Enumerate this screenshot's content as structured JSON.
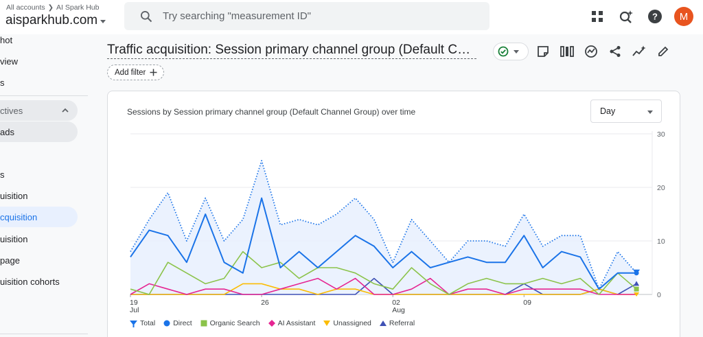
{
  "topbar": {
    "breadcrumb": [
      "All accounts",
      "AI Spark Hub"
    ],
    "account_name": "aisparkhub.com",
    "search_placeholder": "Try searching \"measurement ID\"",
    "avatar_letter": "M"
  },
  "sidebar": {
    "items": [
      {
        "label": "hot",
        "top": 0
      },
      {
        "label": "view",
        "top": 0
      },
      {
        "label": "s",
        "top": 0
      },
      {
        "label": "ctives",
        "top": 0
      },
      {
        "label": "ads",
        "top": 0
      },
      {
        "label": "s",
        "top": 0
      },
      {
        "label": "uisition",
        "top": 0
      },
      {
        "label": "cquisition",
        "top": 0
      },
      {
        "label": "uisition",
        "top": 0
      },
      {
        "label": "page",
        "top": 0
      },
      {
        "label": "uisition cohorts",
        "top": 0
      }
    ]
  },
  "header": {
    "title": "Traffic acquisition: Session primary channel group (Default Channel Group)",
    "add_filter": "Add filter"
  },
  "card": {
    "title": "Sessions by Session primary channel group (Default Channel Group) over time",
    "granularity": "Day"
  },
  "colors": {
    "total": "#1a73e8",
    "total_fill": "#e8f0fe",
    "direct": "#1a73e8",
    "organic": "#8bc34a",
    "ai": "#e52592",
    "unassigned": "#fbbc04",
    "referral": "#3f51b5"
  },
  "chart_data": {
    "type": "line",
    "x_ticks": [
      {
        "day": 0,
        "label": "19",
        "sub": "Jul"
      },
      {
        "day": 7,
        "label": "26",
        "sub": ""
      },
      {
        "day": 14,
        "label": "02",
        "sub": "Aug"
      },
      {
        "day": 21,
        "label": "09",
        "sub": ""
      }
    ],
    "y_ticks": [
      0,
      10,
      20,
      30
    ],
    "ylim": [
      0,
      30
    ],
    "series": [
      {
        "name": "Total",
        "key": "total",
        "values": [
          8,
          14,
          19,
          10,
          18,
          10,
          14,
          25,
          13,
          14,
          13,
          15,
          18,
          14,
          6,
          14,
          10,
          6,
          10,
          10,
          9,
          15,
          9,
          11,
          11,
          1,
          8,
          4
        ]
      },
      {
        "name": "Direct",
        "key": "direct",
        "values": [
          7,
          12,
          11,
          6,
          15,
          6,
          4,
          18,
          5,
          8,
          5,
          8,
          11,
          9,
          5,
          8,
          5,
          6,
          7,
          6,
          6,
          11,
          5,
          8,
          7,
          1,
          4,
          4
        ]
      },
      {
        "name": "Organic Search",
        "key": "organic",
        "values": [
          1,
          0,
          6,
          4,
          2,
          3,
          8,
          5,
          6,
          3,
          5,
          5,
          4,
          2,
          1,
          5,
          2,
          0,
          2,
          3,
          2,
          2,
          3,
          2,
          3,
          0,
          4,
          1
        ]
      },
      {
        "name": "AI Assistant",
        "key": "ai",
        "values": [
          0,
          2,
          1,
          0,
          1,
          1,
          0,
          0,
          1,
          2,
          3,
          1,
          3,
          0,
          0,
          1,
          3,
          0,
          1,
          1,
          0,
          1,
          1,
          1,
          1,
          0,
          0,
          0
        ]
      },
      {
        "name": "Unassigned",
        "key": "unassigned",
        "values": [
          0,
          0,
          0,
          0,
          0,
          0,
          2,
          2,
          1,
          1,
          0,
          1,
          1,
          0,
          0,
          0,
          0,
          0,
          0,
          0,
          0,
          0,
          0,
          0,
          0,
          1,
          0,
          0
        ]
      },
      {
        "name": "Referral",
        "key": "referral",
        "values": [
          0,
          0,
          0,
          0,
          0,
          0,
          0,
          0,
          0,
          0,
          0,
          0,
          0,
          3,
          0,
          0,
          0,
          0,
          0,
          0,
          0,
          2,
          0,
          0,
          0,
          1,
          0,
          2
        ]
      }
    ]
  }
}
